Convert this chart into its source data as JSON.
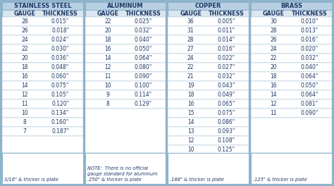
{
  "fig_bg": "#8eb4cb",
  "title_bg": "#b8cfe4",
  "header_bg": "#dce6f1",
  "cell_bg": "#ffffff",
  "border_color": "#8eb4cb",
  "text_color": "#1f3864",
  "font_size": 5.5,
  "header_font_size": 5.8,
  "title_font_size": 6.0,
  "note_font_size": 4.8,
  "sections": [
    {
      "title": "STAINLESS STEEL",
      "data": [
        [
          "28",
          "0.015\""
        ],
        [
          "26",
          "0.018\""
        ],
        [
          "24",
          "0.024\""
        ],
        [
          "22",
          "0.030\""
        ],
        [
          "20",
          "0.036\""
        ],
        [
          "18",
          "0.048\""
        ],
        [
          "16",
          "0.060\""
        ],
        [
          "14",
          "0.075\""
        ],
        [
          "12",
          "0.105\""
        ],
        [
          "11",
          "0.120\""
        ],
        [
          "10",
          "0.134\""
        ],
        [
          "8",
          "0.160\""
        ],
        [
          "7",
          "0.187\""
        ]
      ],
      "note": "3/16\" & thicker is plate"
    },
    {
      "title": "ALUMINUM",
      "data": [
        [
          "22",
          "0.025\""
        ],
        [
          "20",
          "0.032\""
        ],
        [
          "18",
          "0.040\""
        ],
        [
          "16",
          "0.050\""
        ],
        [
          "14",
          "0.064\""
        ],
        [
          "12",
          "0.080\""
        ],
        [
          "11",
          "0.090\""
        ],
        [
          "10",
          "0.100\""
        ],
        [
          "9",
          "0.114\""
        ],
        [
          "8",
          "0.129\""
        ]
      ],
      "note": "NOTE:  There is no official\ngauge standard for aluminum\n.250\" & thicker is plate"
    },
    {
      "title": "COPPER",
      "data": [
        [
          "36",
          "0.005\""
        ],
        [
          "31",
          "0.011\""
        ],
        [
          "28",
          "0.014\""
        ],
        [
          "27",
          "0.016\""
        ],
        [
          "24",
          "0.022\""
        ],
        [
          "22",
          "0.027\""
        ],
        [
          "21",
          "0.032\""
        ],
        [
          "19",
          "0.043\""
        ],
        [
          "18",
          "0.049\""
        ],
        [
          "16",
          "0.065\""
        ],
        [
          "15",
          "0.075\""
        ],
        [
          "14",
          "0.086\""
        ],
        [
          "13",
          "0.093\""
        ],
        [
          "12",
          "0.108\""
        ],
        [
          "10",
          "0.125\""
        ]
      ],
      "note": ".188\" & thicker is plate"
    },
    {
      "title": "BRASS",
      "data": [
        [
          "30",
          "0.010\""
        ],
        [
          "28",
          "0.013\""
        ],
        [
          "26",
          "0.016\""
        ],
        [
          "24",
          "0.020\""
        ],
        [
          "22",
          "0.032\""
        ],
        [
          "20",
          "0.040\""
        ],
        [
          "18",
          "0.064\""
        ],
        [
          "16",
          "0.050\""
        ],
        [
          "14",
          "0.064\""
        ],
        [
          "12",
          "0.081\""
        ],
        [
          "11",
          "0.090\""
        ]
      ],
      "note": ".125\" & thicker is plate"
    }
  ]
}
